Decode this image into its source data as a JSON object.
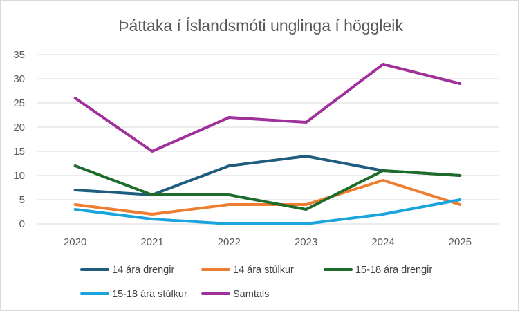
{
  "chart_data": {
    "type": "line",
    "title": "Þáttaka í Íslandsmóti unglinga í höggleik",
    "xlabel": "",
    "ylabel": "",
    "categories": [
      "2020",
      "2021",
      "2022",
      "2023",
      "2024",
      "2025"
    ],
    "y_ticks": [
      "0",
      "5",
      "10",
      "15",
      "20",
      "25",
      "30",
      "35"
    ],
    "ylim": [
      0,
      35
    ],
    "grid": true,
    "legend_position": "bottom",
    "series": [
      {
        "name": "14 ára drengir",
        "color": "#1f5c7e",
        "values": [
          7,
          6,
          12,
          14,
          11,
          10
        ]
      },
      {
        "name": "14 ára stúlkur",
        "color": "#ed7d31",
        "values": [
          4,
          2,
          4,
          4,
          9,
          4
        ]
      },
      {
        "name": "15-18 ára drengir",
        "color": "#1e6b2a",
        "values": [
          12,
          6,
          6,
          3,
          11,
          10
        ]
      },
      {
        "name": "15-18 ára stúlkur",
        "color": "#1aa3dc",
        "values": [
          3,
          1,
          0,
          0,
          2,
          5
        ]
      },
      {
        "name": "Samtals",
        "color": "#a0309a",
        "values": [
          26,
          15,
          22,
          21,
          33,
          29
        ]
      }
    ]
  }
}
